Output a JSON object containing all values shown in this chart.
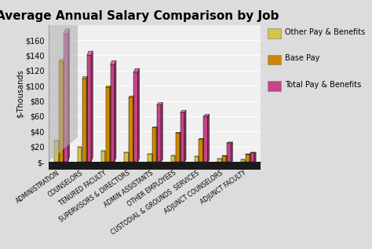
{
  "title": "Average Annual Salary Comparison by Job",
  "ylabel": "$-Thousands",
  "categories": [
    "ADMINISTRATION",
    "COUNSELORS",
    "TENURED FACULTY",
    "SUPERVISORS & DIRECTORS",
    "ADMIN ASSISTANTS",
    "OTHER EMPLOYEES",
    "CUSTODIAL & GROUNDS  SERVICES",
    "ADJUNCT COUNSELORS",
    "ADJUNCT FACULTY"
  ],
  "series_names": [
    "Other Pay & Benefits",
    "Base Pay",
    "Total Pay & Benefits"
  ],
  "other_pay": [
    28,
    20,
    15,
    12,
    10,
    8,
    7,
    4,
    3
  ],
  "base_pay": [
    132,
    110,
    98,
    85,
    45,
    38,
    30,
    8,
    10
  ],
  "total_pay": [
    168,
    140,
    128,
    118,
    75,
    65,
    60,
    25,
    12
  ],
  "colors_front": {
    "Other Pay & Benefits": "#D4C44A",
    "Base Pay": "#CC8800",
    "Total Pay & Benefits": "#C84488"
  },
  "colors_side": {
    "Other Pay & Benefits": "#A09030",
    "Base Pay": "#995500",
    "Total Pay & Benefits": "#883060"
  },
  "colors_top": {
    "Other Pay & Benefits": "#E8D860",
    "Base Pay": "#DDAA22",
    "Total Pay & Benefits": "#DD66AA"
  },
  "ylim": [
    0,
    180
  ],
  "yticks": [
    0,
    20,
    40,
    60,
    80,
    100,
    120,
    140,
    160
  ],
  "ytick_labels": [
    "$-",
    "$20",
    "$40",
    "$60",
    "$80",
    "$100",
    "$120",
    "$140",
    "$160"
  ],
  "bg_color": "#DCDCDC",
  "plot_bg": "#F0F0F0",
  "wall_color": "#B8B8C8",
  "floor_color": "#1A1A1A",
  "title_fontsize": 11,
  "tick_fontsize": 7,
  "cat_fontsize": 5.5,
  "legend_fontsize": 7
}
